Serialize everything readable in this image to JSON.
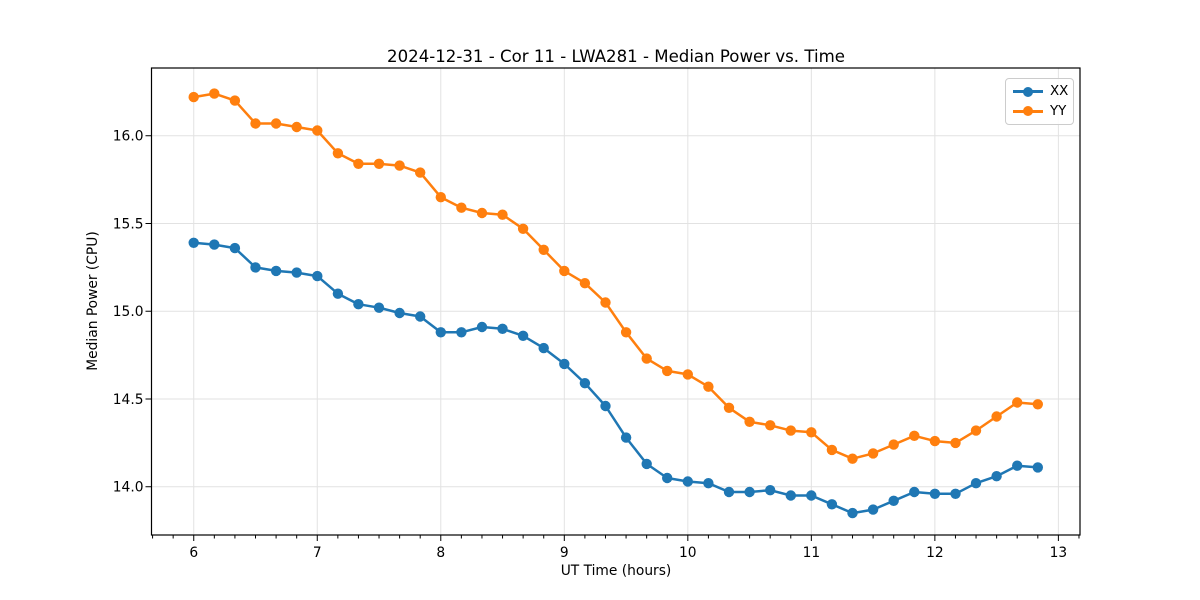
{
  "chart_data": {
    "type": "line",
    "title": "2024-12-31 - Cor 11 - LWA281 - Median Power vs. Time",
    "xlabel": "UT Time (hours)",
    "ylabel": "Median Power (CPU)",
    "xlim": [
      5.658,
      13.175
    ],
    "ylim": [
      13.725,
      16.386
    ],
    "x_ticks": [
      6,
      7,
      8,
      9,
      10,
      11,
      12,
      13
    ],
    "x_tick_labels": [
      "6",
      "7",
      "8",
      "9",
      "10",
      "11",
      "12",
      "13"
    ],
    "y_ticks": [
      14.0,
      14.5,
      15.0,
      15.5,
      16.0
    ],
    "y_tick_labels": [
      "14.0",
      "14.5",
      "15.0",
      "15.5",
      "16.0"
    ],
    "x_minor_step": 0.166667,
    "grid": true,
    "legend_position": "upper right",
    "x": [
      6.0,
      6.1667,
      6.3333,
      6.5,
      6.6667,
      6.8333,
      7.0,
      7.1667,
      7.3333,
      7.5,
      7.6667,
      7.8333,
      8.0,
      8.1667,
      8.3333,
      8.5,
      8.6667,
      8.8333,
      9.0,
      9.1667,
      9.3333,
      9.5,
      9.6667,
      9.8333,
      10.0,
      10.1667,
      10.3333,
      10.5,
      10.6667,
      10.8333,
      11.0,
      11.1667,
      11.3333,
      11.5,
      11.6667,
      11.8333,
      12.0,
      12.1667,
      12.3333,
      12.5,
      12.6667,
      12.8333
    ],
    "series": [
      {
        "name": "XX",
        "color": "#1f77b4",
        "values": [
          15.39,
          15.38,
          15.36,
          15.25,
          15.23,
          15.22,
          15.2,
          15.1,
          15.04,
          15.02,
          14.99,
          14.97,
          14.88,
          14.88,
          14.91,
          14.9,
          14.86,
          14.79,
          14.7,
          14.59,
          14.46,
          14.28,
          14.13,
          14.05,
          14.03,
          14.02,
          13.97,
          13.97,
          13.98,
          13.95,
          13.95,
          13.9,
          13.85,
          13.87,
          13.92,
          13.97,
          13.96,
          13.96,
          14.02,
          14.06,
          14.12,
          14.11
        ]
      },
      {
        "name": "YY",
        "color": "#ff7f0e",
        "values": [
          16.22,
          16.24,
          16.2,
          16.07,
          16.07,
          16.05,
          16.03,
          15.9,
          15.84,
          15.84,
          15.83,
          15.79,
          15.65,
          15.59,
          15.56,
          15.55,
          15.47,
          15.35,
          15.23,
          15.16,
          15.05,
          14.88,
          14.73,
          14.66,
          14.64,
          14.57,
          14.45,
          14.37,
          14.35,
          14.32,
          14.31,
          14.21,
          14.16,
          14.19,
          14.24,
          14.29,
          14.26,
          14.25,
          14.32,
          14.4,
          14.48,
          14.47
        ]
      }
    ]
  },
  "style": {
    "background": "#ffffff",
    "grid_color": "#e2e2e2",
    "axis_color": "#000000",
    "legend_border_color": "#cccccc"
  }
}
